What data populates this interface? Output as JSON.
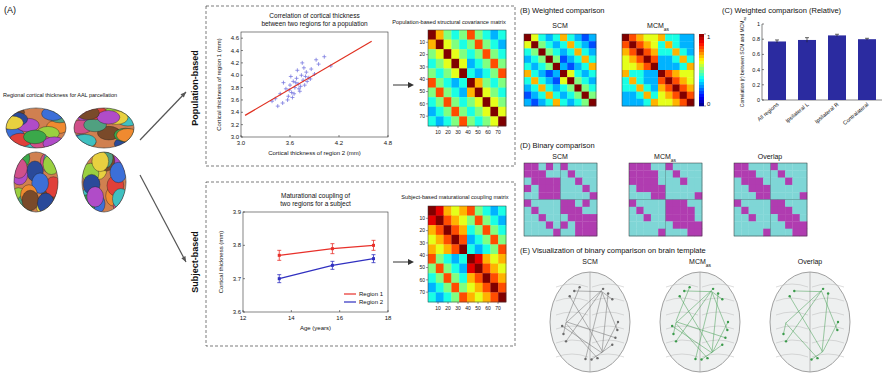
{
  "figure": {
    "panel_A": "(A)",
    "brain_caption": "Regional cortical thickness for AAL parcellation",
    "population_label": "Population-based",
    "subject_label": "Subject-based",
    "panel_B": "(B) Weighted comparison",
    "panel_C": "(C) Weighted comparison (Relative)",
    "panel_D": "(D) Binary comparison",
    "panel_E": "(E) Visualization of binary comparison on brain template",
    "brain_labels": [
      {
        "text": "SCM"
      },
      {
        "text": "MCM",
        "sub": "as"
      },
      {
        "text": "Overlap"
      }
    ]
  },
  "chart_data": [
    {
      "type": "scatter",
      "title": [
        "Correlation of cortical thickness",
        "between two regions for a population"
      ],
      "x_label": "Cortical thickness of region 2 (mm)",
      "y_label": "Cortical thickness of region 1 (mm)",
      "xlim": [
        3.0,
        4.8
      ],
      "xticks": [
        {
          "value": 3,
          "label": "3.0"
        },
        3.6,
        4.2,
        4.8
      ],
      "ylim": [
        3.0,
        4.7
      ],
      "yticks": [
        {
          "value": 3,
          "label": "3.0"
        },
        3.2,
        3.4,
        3.6,
        3.8,
        {
          "value": 4,
          "label": "4.0"
        },
        4.2,
        4.4,
        4.6
      ],
      "series": [
        {
          "type": "scatter",
          "color": "#7a7ae0",
          "marker": "plus",
          "x": [
            3.42,
            3.48,
            3.51,
            3.55,
            3.58,
            3.6,
            3.62,
            3.64,
            3.66,
            3.68,
            3.7,
            3.72,
            3.74,
            3.76,
            3.78,
            3.8,
            3.83,
            3.86,
            3.9,
            3.95,
            3.52,
            3.57,
            3.61,
            3.65,
            3.69,
            3.73,
            3.77,
            3.81,
            3.45,
            3.59,
            3.63,
            3.67,
            3.71,
            3.75,
            3.79,
            3.85,
            3.92,
            4.02,
            4.1,
            3.38
          ],
          "values": [
            3.62,
            3.7,
            3.55,
            3.78,
            3.66,
            3.84,
            3.72,
            3.9,
            3.8,
            3.95,
            3.86,
            3.74,
            4.0,
            3.92,
            3.84,
            4.05,
            3.96,
            4.1,
            4.02,
            4.18,
            3.88,
            3.6,
            3.98,
            3.7,
            4.08,
            3.82,
            4.12,
            3.9,
            3.5,
            3.76,
            3.64,
            3.88,
            3.78,
            4.2,
            3.98,
            3.94,
            4.25,
            4.3,
            4.15,
            3.58
          ]
        },
        {
          "type": "line",
          "color": "#e03020",
          "x": [
            3.05,
            4.6
          ],
          "values": [
            3.35,
            4.55
          ]
        }
      ]
    },
    {
      "type": "heatmap",
      "title": "Population-based structural covariance matrix",
      "xlim": [
        0,
        78
      ],
      "ylim": [
        0,
        78
      ],
      "xticks": [
        10,
        20,
        30,
        40,
        50,
        60,
        70
      ],
      "yticks": [
        10,
        20,
        30,
        40,
        50,
        60,
        70
      ],
      "color_range": [
        0,
        1
      ],
      "values": [
        [
          1.0,
          0.7,
          0.5,
          0.4,
          0.5,
          0.8,
          0.5,
          0.4,
          0.3,
          0.4
        ],
        [
          0.7,
          1.0,
          0.6,
          0.5,
          0.4,
          0.5,
          0.8,
          0.5,
          0.4,
          0.3
        ],
        [
          0.5,
          0.6,
          1.0,
          0.6,
          0.5,
          0.4,
          0.5,
          0.8,
          0.5,
          0.4
        ],
        [
          0.4,
          0.5,
          0.6,
          1.0,
          0.6,
          0.3,
          0.4,
          0.5,
          0.8,
          0.5
        ],
        [
          0.5,
          0.4,
          0.5,
          0.6,
          1.0,
          0.4,
          0.3,
          0.4,
          0.5,
          0.8
        ],
        [
          0.8,
          0.5,
          0.4,
          0.3,
          0.4,
          1.0,
          0.7,
          0.5,
          0.4,
          0.5
        ],
        [
          0.5,
          0.8,
          0.5,
          0.4,
          0.3,
          0.7,
          1.0,
          0.6,
          0.5,
          0.4
        ],
        [
          0.4,
          0.5,
          0.8,
          0.5,
          0.4,
          0.5,
          0.6,
          1.0,
          0.6,
          0.5
        ],
        [
          0.3,
          0.4,
          0.5,
          0.8,
          0.5,
          0.4,
          0.5,
          0.6,
          1.0,
          0.6
        ],
        [
          0.4,
          0.3,
          0.4,
          0.5,
          0.8,
          0.5,
          0.4,
          0.5,
          0.6,
          1.0
        ]
      ]
    },
    {
      "type": "line",
      "title": [
        "Maturational coupling of",
        "two regions for a subject"
      ],
      "x_label": "Age (years)",
      "y_label": "Cortical thickness (mm)",
      "legend": "lower right",
      "xlim": [
        12,
        18
      ],
      "xticks": [
        12,
        14,
        16,
        18
      ],
      "ylim": [
        3.6,
        3.9
      ],
      "yticks": [
        3.6,
        3.7,
        3.8,
        3.9
      ],
      "x": [
        13.5,
        15.7,
        17.4
      ],
      "series": [
        {
          "name": "Region 1",
          "color": "#e8302a",
          "marker": "square",
          "values": [
            3.77,
            3.79,
            3.8
          ],
          "errors": [
            0.015,
            0.015,
            0.015
          ]
        },
        {
          "name": "Region 2",
          "color": "#3030c0",
          "marker": "square",
          "values": [
            3.7,
            3.74,
            3.76
          ],
          "errors": [
            0.012,
            0.012,
            0.012
          ]
        }
      ]
    },
    {
      "type": "heatmap",
      "title": "Subject-based maturational coupling matrix",
      "xlim": [
        0,
        78
      ],
      "ylim": [
        0,
        78
      ],
      "xticks": [
        10,
        20,
        30,
        40,
        50,
        60,
        70
      ],
      "yticks": [
        10,
        20,
        30,
        40,
        50,
        60,
        70
      ],
      "color_range": [
        0,
        1
      ],
      "values": [
        [
          1.0,
          0.9,
          0.7,
          0.6,
          0.7,
          0.8,
          0.5,
          0.4,
          0.3,
          0.4
        ],
        [
          0.9,
          1.0,
          0.8,
          0.7,
          0.6,
          0.5,
          0.8,
          0.5,
          0.4,
          0.3
        ],
        [
          0.7,
          0.8,
          1.0,
          0.8,
          0.7,
          0.4,
          0.5,
          0.8,
          0.5,
          0.4
        ],
        [
          0.6,
          0.7,
          0.8,
          1.0,
          0.8,
          0.3,
          0.4,
          0.5,
          0.8,
          0.5
        ],
        [
          0.7,
          0.6,
          0.7,
          0.8,
          1.0,
          0.4,
          0.3,
          0.4,
          0.5,
          0.8
        ],
        [
          0.8,
          0.5,
          0.4,
          0.3,
          0.4,
          1.0,
          0.9,
          0.7,
          0.6,
          0.7
        ],
        [
          0.5,
          0.8,
          0.5,
          0.4,
          0.3,
          0.9,
          1.0,
          0.8,
          0.7,
          0.6
        ],
        [
          0.4,
          0.5,
          0.8,
          0.5,
          0.4,
          0.7,
          0.8,
          1.0,
          0.8,
          0.7
        ],
        [
          0.3,
          0.4,
          0.5,
          0.8,
          0.5,
          0.6,
          0.7,
          0.8,
          1.0,
          0.8
        ],
        [
          0.4,
          0.3,
          0.4,
          0.5,
          0.8,
          0.7,
          0.6,
          0.7,
          0.8,
          1.0
        ]
      ]
    },
    {
      "type": "heatmap",
      "title": {
        "text": "SCM"
      },
      "tick_labels": false,
      "color_range": [
        0,
        1
      ],
      "values": [
        [
          1.0,
          0.6,
          0.4,
          0.3,
          0.4,
          0.7,
          0.4,
          0.3,
          0.2,
          0.3
        ],
        [
          0.6,
          1.0,
          0.5,
          0.4,
          0.3,
          0.4,
          0.7,
          0.4,
          0.3,
          0.2
        ],
        [
          0.4,
          0.5,
          1.0,
          0.5,
          0.4,
          0.3,
          0.4,
          0.7,
          0.4,
          0.3
        ],
        [
          0.3,
          0.4,
          0.5,
          1.0,
          0.5,
          0.2,
          0.3,
          0.4,
          0.7,
          0.4
        ],
        [
          0.4,
          0.3,
          0.4,
          0.5,
          1.0,
          0.3,
          0.2,
          0.3,
          0.4,
          0.7
        ],
        [
          0.7,
          0.4,
          0.3,
          0.2,
          0.3,
          1.0,
          0.6,
          0.4,
          0.3,
          0.4
        ],
        [
          0.4,
          0.7,
          0.4,
          0.3,
          0.2,
          0.6,
          1.0,
          0.5,
          0.4,
          0.3
        ],
        [
          0.3,
          0.4,
          0.7,
          0.4,
          0.3,
          0.4,
          0.5,
          1.0,
          0.5,
          0.4
        ],
        [
          0.2,
          0.3,
          0.4,
          0.7,
          0.4,
          0.3,
          0.4,
          0.5,
          1.0,
          0.5
        ],
        [
          0.3,
          0.2,
          0.3,
          0.4,
          0.7,
          0.4,
          0.3,
          0.4,
          0.5,
          1.0
        ]
      ]
    },
    {
      "type": "heatmap",
      "title": {
        "text": "MCM",
        "sub": "as"
      },
      "tick_labels": false,
      "color_range": [
        0,
        1
      ],
      "color_ticks": [
        0,
        1
      ],
      "values": [
        [
          1.0,
          0.8,
          0.7,
          0.6,
          0.6,
          0.7,
          0.4,
          0.4,
          0.3,
          0.3
        ],
        [
          0.8,
          1.0,
          0.8,
          0.7,
          0.6,
          0.4,
          0.7,
          0.4,
          0.3,
          0.3
        ],
        [
          0.7,
          0.8,
          1.0,
          0.8,
          0.7,
          0.4,
          0.4,
          0.7,
          0.4,
          0.3
        ],
        [
          0.6,
          0.7,
          0.8,
          1.0,
          0.8,
          0.3,
          0.3,
          0.4,
          0.7,
          0.4
        ],
        [
          0.6,
          0.6,
          0.7,
          0.8,
          1.0,
          0.3,
          0.3,
          0.3,
          0.4,
          0.7
        ],
        [
          0.7,
          0.4,
          0.4,
          0.3,
          0.3,
          1.0,
          0.8,
          0.7,
          0.6,
          0.6
        ],
        [
          0.4,
          0.7,
          0.4,
          0.3,
          0.3,
          0.8,
          1.0,
          0.8,
          0.7,
          0.6
        ],
        [
          0.4,
          0.4,
          0.7,
          0.4,
          0.3,
          0.7,
          0.8,
          1.0,
          0.8,
          0.7
        ],
        [
          0.3,
          0.3,
          0.4,
          0.7,
          0.4,
          0.6,
          0.7,
          0.8,
          1.0,
          0.8
        ],
        [
          0.3,
          0.3,
          0.3,
          0.4,
          0.7,
          0.6,
          0.6,
          0.7,
          0.8,
          1.0
        ]
      ]
    },
    {
      "type": "bar",
      "y_label": {
        "text": "Correlation (r) between SCM and MCM",
        "sub": "as"
      },
      "categories": [
        "All regions",
        "Ipsilateral L",
        "Ipsilateral R",
        "Contralateral"
      ],
      "values": [
        0.77,
        0.79,
        0.85,
        0.8
      ],
      "errors": [
        0.02,
        0.03,
        0.015,
        0.012
      ],
      "color": "#2b2ba0",
      "ylim": [
        0,
        1
      ],
      "yticks": [
        0,
        0.2,
        0.4,
        0.6,
        0.8,
        1
      ]
    },
    {
      "type": "binary",
      "title": {
        "text": "SCM"
      },
      "tick_labels": false,
      "color": "#b03cb0",
      "values": [
        [
          1,
          1,
          0,
          1,
          0,
          1,
          0,
          0,
          0,
          0
        ],
        [
          1,
          1,
          1,
          0,
          0,
          0,
          1,
          0,
          0,
          0
        ],
        [
          0,
          1,
          1,
          1,
          1,
          0,
          0,
          1,
          0,
          0
        ],
        [
          1,
          0,
          1,
          1,
          1,
          0,
          0,
          0,
          1,
          0
        ],
        [
          0,
          0,
          1,
          1,
          1,
          0,
          0,
          0,
          0,
          1
        ],
        [
          1,
          0,
          0,
          0,
          0,
          1,
          1,
          0,
          1,
          0
        ],
        [
          0,
          1,
          0,
          0,
          0,
          1,
          1,
          1,
          0,
          0
        ],
        [
          0,
          0,
          1,
          0,
          0,
          0,
          1,
          1,
          1,
          1
        ],
        [
          0,
          0,
          0,
          1,
          0,
          1,
          0,
          1,
          1,
          1
        ],
        [
          0,
          0,
          0,
          0,
          1,
          0,
          0,
          1,
          1,
          1
        ]
      ]
    },
    {
      "type": "binary",
      "title": {
        "text": "MCM",
        "sub": "as"
      },
      "tick_labels": false,
      "color": "#b03cb0",
      "values": [
        [
          1,
          1,
          1,
          0,
          0,
          1,
          0,
          0,
          0,
          0
        ],
        [
          1,
          1,
          1,
          1,
          0,
          0,
          1,
          0,
          0,
          0
        ],
        [
          1,
          1,
          1,
          1,
          0,
          0,
          0,
          1,
          0,
          0
        ],
        [
          0,
          1,
          1,
          1,
          1,
          0,
          0,
          0,
          0,
          0
        ],
        [
          0,
          0,
          0,
          1,
          1,
          0,
          0,
          0,
          0,
          1
        ],
        [
          1,
          0,
          0,
          0,
          0,
          1,
          1,
          1,
          0,
          0
        ],
        [
          0,
          1,
          0,
          0,
          0,
          1,
          1,
          1,
          1,
          0
        ],
        [
          0,
          0,
          1,
          0,
          0,
          1,
          1,
          1,
          1,
          0
        ],
        [
          0,
          0,
          0,
          0,
          0,
          0,
          1,
          1,
          1,
          1
        ],
        [
          0,
          0,
          0,
          0,
          1,
          0,
          0,
          0,
          1,
          1
        ]
      ]
    },
    {
      "type": "binary",
      "title": {
        "text": "Overlap"
      },
      "tick_labels": false,
      "color": "#b03cb0",
      "values": [
        [
          1,
          1,
          0,
          0,
          0,
          1,
          0,
          0,
          0,
          0
        ],
        [
          1,
          1,
          1,
          0,
          0,
          0,
          1,
          0,
          0,
          0
        ],
        [
          0,
          1,
          1,
          1,
          0,
          0,
          0,
          1,
          0,
          0
        ],
        [
          0,
          0,
          1,
          1,
          1,
          0,
          0,
          0,
          0,
          0
        ],
        [
          0,
          0,
          0,
          1,
          1,
          0,
          0,
          0,
          0,
          1
        ],
        [
          1,
          0,
          0,
          0,
          0,
          1,
          1,
          0,
          0,
          0
        ],
        [
          0,
          1,
          0,
          0,
          0,
          1,
          1,
          1,
          0,
          0
        ],
        [
          0,
          0,
          1,
          0,
          0,
          0,
          1,
          1,
          1,
          0
        ],
        [
          0,
          0,
          0,
          0,
          0,
          0,
          0,
          1,
          1,
          1
        ],
        [
          0,
          0,
          0,
          0,
          1,
          0,
          0,
          0,
          1,
          1
        ]
      ]
    }
  ]
}
